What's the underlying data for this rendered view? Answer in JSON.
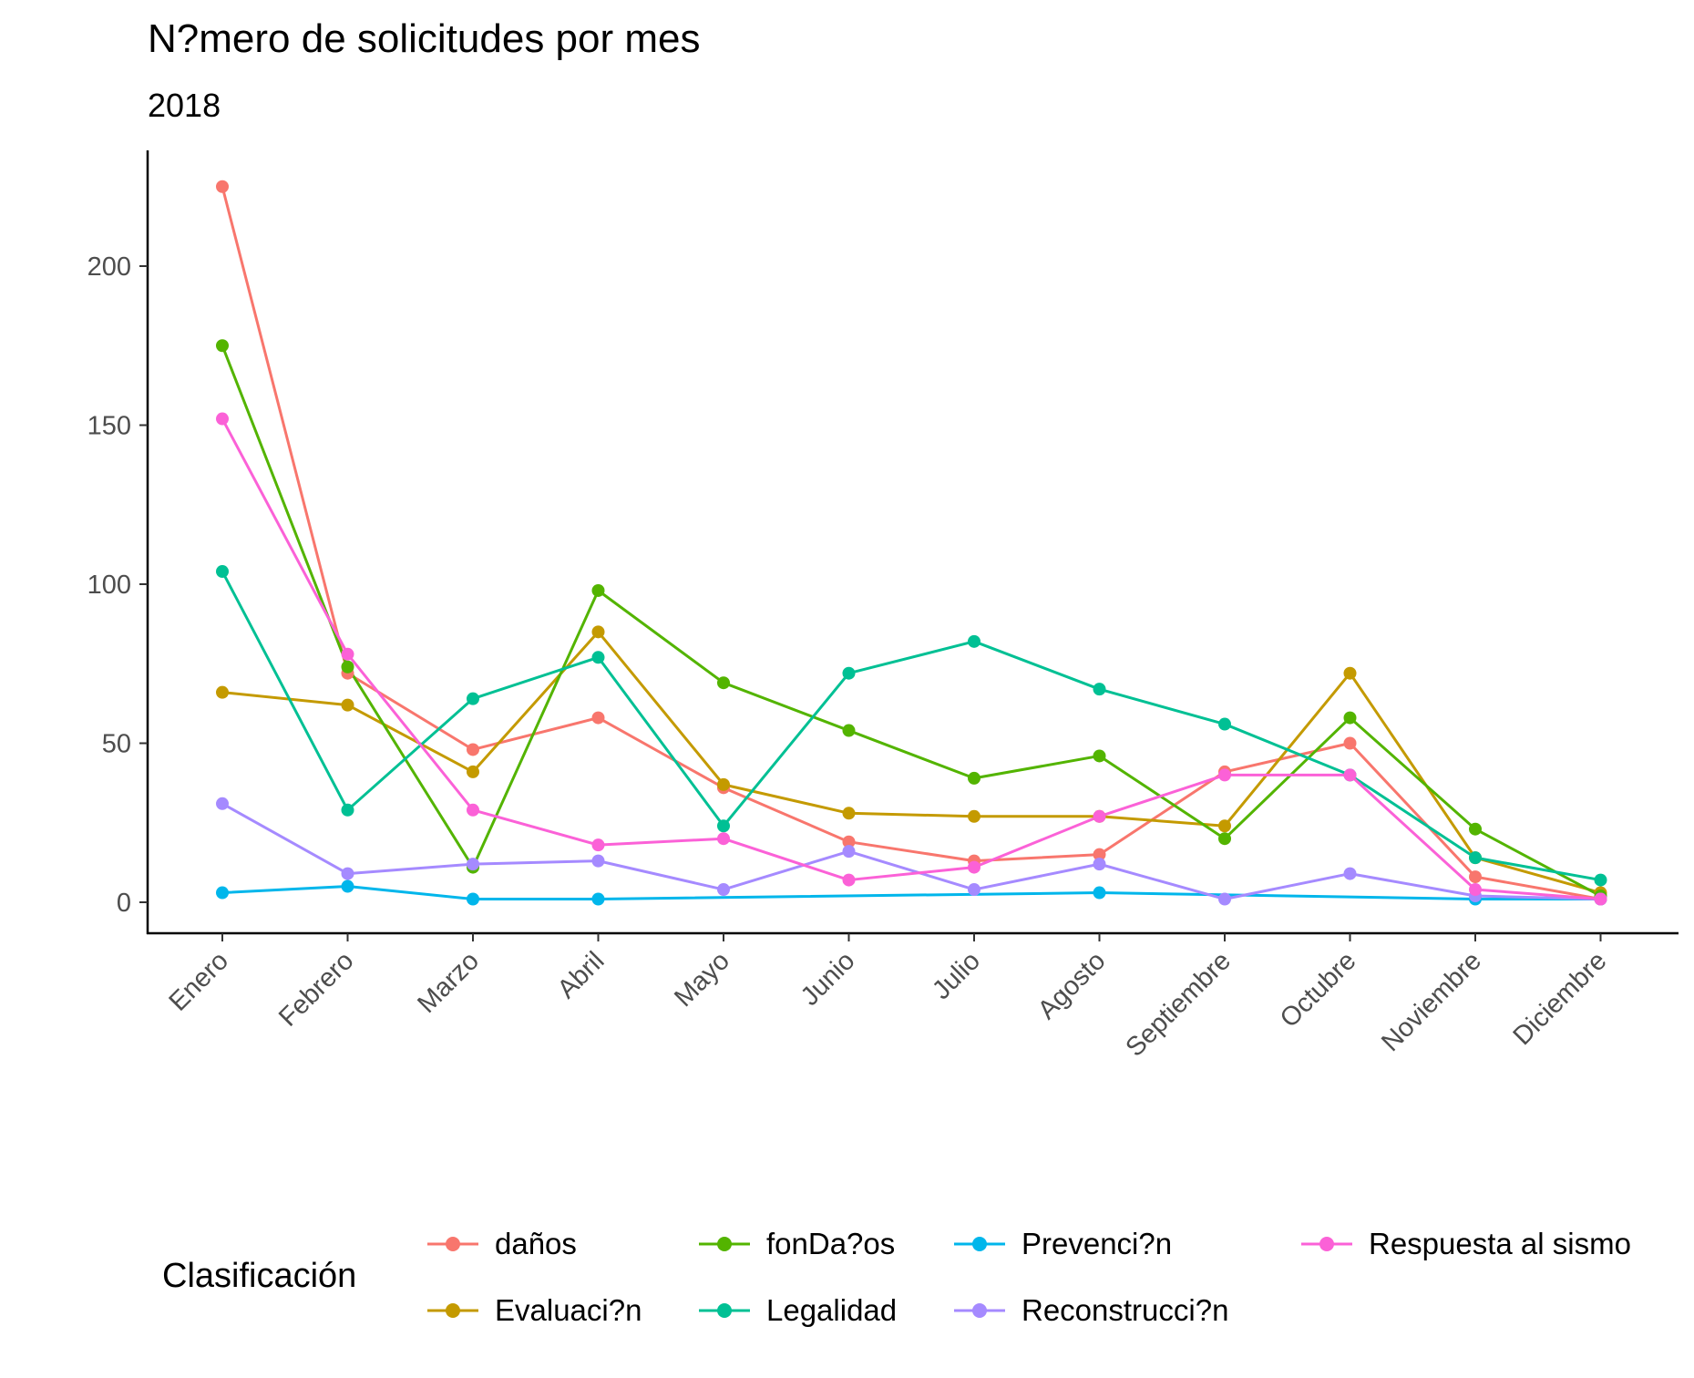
{
  "chart_data": {
    "type": "line",
    "title": "N?mero de solicitudes por mes",
    "subtitle": "2018",
    "xlabel": "",
    "ylabel": "",
    "categories": [
      "Enero",
      "Febrero",
      "Marzo",
      "Abril",
      "Mayo",
      "Junio",
      "Julio",
      "Agosto",
      "Septiembre",
      "Octubre",
      "Noviembre",
      "Diciembre"
    ],
    "ylim": [
      -10,
      235
    ],
    "yticks": [
      0,
      50,
      100,
      150,
      200
    ],
    "grid": false,
    "legend_title": "Clasificación",
    "legend_position": "bottom",
    "series": [
      {
        "name": "daños",
        "color": "#F8766D",
        "values": [
          225,
          72,
          48,
          58,
          36,
          19,
          13,
          15,
          41,
          50,
          8,
          1
        ]
      },
      {
        "name": "Evaluaci?n",
        "color": "#C49A00",
        "values": [
          66,
          62,
          41,
          85,
          37,
          28,
          27,
          27,
          24,
          72,
          14,
          3
        ]
      },
      {
        "name": "fonDa?os",
        "color": "#53B400",
        "values": [
          175,
          74,
          11,
          98,
          69,
          54,
          39,
          46,
          20,
          58,
          23,
          2
        ]
      },
      {
        "name": "Legalidad",
        "color": "#00C094",
        "values": [
          104,
          29,
          64,
          77,
          24,
          72,
          82,
          67,
          56,
          40,
          14,
          7
        ]
      },
      {
        "name": "Prevenci?n",
        "color": "#00B6EB",
        "values": [
          3,
          5,
          1,
          1,
          null,
          null,
          null,
          3,
          null,
          null,
          1,
          1
        ]
      },
      {
        "name": "Reconstrucci?n",
        "color": "#A58AFF",
        "values": [
          31,
          9,
          12,
          13,
          4,
          16,
          4,
          12,
          1,
          9,
          2,
          1
        ]
      },
      {
        "name": "Respuesta al sismo",
        "color": "#FB61D7",
        "values": [
          152,
          78,
          29,
          18,
          20,
          7,
          11,
          27,
          40,
          40,
          4,
          1
        ]
      }
    ]
  }
}
